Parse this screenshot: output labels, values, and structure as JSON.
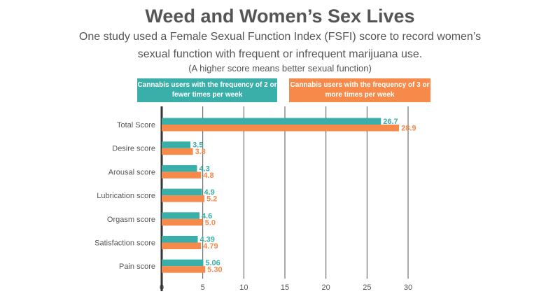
{
  "title": "Weed and Women’s Sex Lives",
  "subtitle": "One study used a Female Sexual Function Index (FSFI) score to record women’s sexual function with frequent or infrequent marijuana use.",
  "note": "(A higher score means better sexual function)",
  "colors": {
    "teal": "#3aafa9",
    "orange": "#f58a4b",
    "grid": "#555555",
    "text": "#555555"
  },
  "chart_data": {
    "type": "bar",
    "orientation": "horizontal",
    "categories": [
      "Total Score",
      "Desire score",
      "Arousal score",
      "Lubrication score",
      "Orgasm score",
      "Satisfaction score",
      "Pain score"
    ],
    "series": [
      {
        "name": "Cannabis users with the frequency of 2 or fewer times per week",
        "color": "#3aafa9",
        "values": [
          26.7,
          3.5,
          4.3,
          4.9,
          4.6,
          4.39,
          5.06
        ],
        "labels": [
          "26.7",
          "3.5",
          "4.3",
          "4.9",
          "4.6",
          "4.39",
          "5.06"
        ]
      },
      {
        "name": "Cannabis users with the frequency of 3 or more times per week",
        "color": "#f58a4b",
        "values": [
          28.9,
          3.8,
          4.8,
          5.2,
          5.0,
          4.79,
          5.3
        ],
        "labels": [
          "28.9",
          "3.8",
          "4.8",
          "5.2",
          "5.0",
          "4.79",
          "5.30"
        ]
      }
    ],
    "xlim": [
      0,
      30
    ],
    "xticks": [
      "0",
      "5",
      "10",
      "15",
      "20",
      "25",
      "30"
    ],
    "grid": true
  }
}
